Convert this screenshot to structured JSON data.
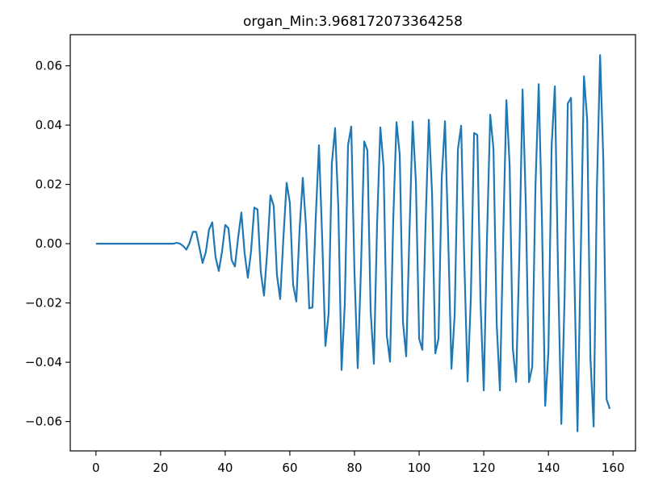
{
  "chart_data": {
    "type": "line",
    "title": "organ_Min:3.968172073364258",
    "xlabel": "",
    "ylabel": "",
    "xlim": [
      -7.95,
      166.95
    ],
    "ylim": [
      -0.0699,
      0.0705
    ],
    "x_ticks": [
      0,
      20,
      40,
      60,
      80,
      100,
      120,
      140,
      160
    ],
    "y_ticks": [
      -0.06,
      -0.04,
      -0.02,
      0.0,
      0.02,
      0.04,
      0.06
    ],
    "x_tick_labels": [
      "0",
      "20",
      "40",
      "60",
      "80",
      "100",
      "120",
      "140",
      "160"
    ],
    "y_tick_labels": [
      "−0.06",
      "−0.04",
      "−0.02",
      "0.00",
      "0.02",
      "0.04",
      "0.06"
    ],
    "grid": false,
    "series": [
      {
        "color": "#1f77b4",
        "x": [
          0,
          1,
          2,
          3,
          4,
          5,
          6,
          7,
          8,
          9,
          10,
          11,
          12,
          13,
          14,
          15,
          16,
          17,
          18,
          19,
          20,
          21,
          22,
          23,
          24,
          25,
          26,
          27,
          28,
          29,
          30,
          31,
          32,
          33,
          34,
          35,
          36,
          37,
          38,
          39,
          40,
          41,
          42,
          43,
          44,
          45,
          46,
          47,
          48,
          49,
          50,
          51,
          52,
          53,
          54,
          55,
          56,
          57,
          58,
          59,
          60,
          61,
          62,
          63,
          64,
          65,
          66,
          67,
          68,
          69,
          70,
          71,
          72,
          73,
          74,
          75,
          76,
          77,
          78,
          79,
          80,
          81,
          82,
          83,
          84,
          85,
          86,
          87,
          88,
          89,
          90,
          91,
          92,
          93,
          94,
          95,
          96,
          97,
          98,
          99,
          100,
          101,
          102,
          103,
          104,
          105,
          106,
          107,
          108,
          109,
          110,
          111,
          112,
          113,
          114,
          115,
          116,
          117,
          118,
          119,
          120,
          121,
          122,
          123,
          124,
          125,
          126,
          127,
          128,
          129,
          130,
          131,
          132,
          133,
          134,
          135,
          136,
          137,
          138,
          139,
          140,
          141,
          142,
          143,
          144,
          145,
          146,
          147,
          148,
          149,
          150,
          151,
          152,
          153,
          154,
          155,
          156,
          157,
          158,
          159
        ],
        "y": [
          0,
          0,
          0,
          0,
          0,
          0,
          0,
          0,
          0,
          0,
          0,
          0,
          0,
          0,
          0,
          0,
          0,
          0,
          0,
          0,
          0,
          0,
          0,
          0,
          0,
          0.0003,
          0,
          -0.0008,
          -0.002,
          0.0003,
          0.004,
          0.004,
          -0.0012,
          -0.0065,
          -0.0028,
          0.0048,
          0.0072,
          -0.0045,
          -0.0092,
          -0.0028,
          0.0063,
          0.0052,
          -0.0056,
          -0.0077,
          0.0021,
          0.0105,
          -0.0032,
          -0.0115,
          -0.0025,
          0.0122,
          0.0115,
          -0.0095,
          -0.0175,
          -0.0025,
          0.0163,
          0.0128,
          -0.0105,
          -0.0187,
          0.0018,
          0.0205,
          0.0138,
          -0.0138,
          -0.0195,
          0.0045,
          0.0222,
          0.0058,
          -0.0218,
          -0.0215,
          0.0085,
          0.0332,
          0.002,
          -0.0345,
          -0.0235,
          0.0272,
          0.039,
          0.012,
          -0.0426,
          -0.0205,
          0.0332,
          0.0395,
          -0.01,
          -0.042,
          -0.0085,
          0.0345,
          0.0315,
          -0.0228,
          -0.0405,
          0.007,
          0.0392,
          0.026,
          -0.031,
          -0.0398,
          0.0085,
          0.041,
          0.03,
          -0.0265,
          -0.038,
          0.0035,
          0.0412,
          0.021,
          -0.032,
          -0.0358,
          0.007,
          0.0418,
          0.017,
          -0.037,
          -0.032,
          0.0222,
          0.0413,
          0.0016,
          -0.0422,
          -0.024,
          0.0318,
          0.0398,
          -0.0068,
          -0.0465,
          -0.0185,
          0.0373,
          0.0367,
          -0.02,
          -0.0495,
          0.002,
          0.0435,
          0.032,
          -0.027,
          -0.0495,
          0.0015,
          0.0484,
          0.0265,
          -0.0355,
          -0.0466,
          -0.0045,
          0.052,
          0.014,
          -0.0467,
          -0.0415,
          0.0195,
          0.0538,
          0.0081,
          -0.0547,
          -0.0365,
          0.033,
          0.0531,
          -0.0105,
          -0.0608,
          -0.0185,
          0.0473,
          0.0492,
          -0.0082,
          -0.0633,
          -0.0045,
          0.0565,
          0.0418,
          -0.0385,
          -0.0617,
          0.0185,
          0.0636,
          0.028,
          -0.0525,
          -0.0557
        ]
      }
    ]
  }
}
